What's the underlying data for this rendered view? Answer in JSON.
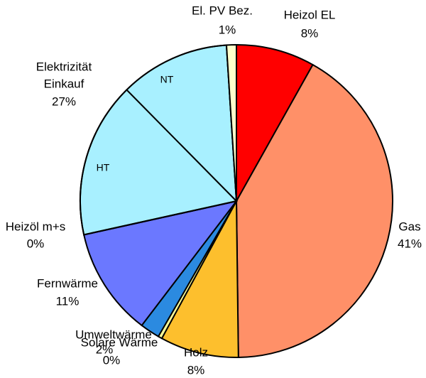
{
  "chart_data": {
    "type": "pie",
    "slices": [
      {
        "label": [
          "Heizol EL"
        ],
        "value": 8,
        "value_label": "8%",
        "color": "#ff0000"
      },
      {
        "label": [
          "Gas"
        ],
        "value": 41,
        "value_label": "41%",
        "color": "#ff9068"
      },
      {
        "label": [
          "Holz"
        ],
        "value": 8,
        "value_label": "8%",
        "color": "#fdbf2d"
      },
      {
        "label": [
          "Solare Wärme"
        ],
        "value": 0.4,
        "value_label": "0%",
        "color": "#ffff99"
      },
      {
        "label": [
          "Umweltwärme"
        ],
        "value": 2,
        "value_label": "2%",
        "color": "#2b8ae0"
      },
      {
        "label": [
          "Fernwärme"
        ],
        "value": 11,
        "value_label": "11%",
        "color": "#6b78ff"
      },
      {
        "label": [
          "Heizöl m+s"
        ],
        "value": 0,
        "value_label": "0%",
        "color": "#808080"
      },
      {
        "label": [
          "Elektrizität",
          "Einkauf"
        ],
        "value": 27,
        "value_label": "27%",
        "color": "#a8f0ff",
        "parts": [
          {
            "label": "HT",
            "value": 15.8
          },
          {
            "label": "NT",
            "value": 11.2
          }
        ]
      },
      {
        "label": [
          "El. PV Bez."
        ],
        "value": 1,
        "value_label": "1%",
        "color": "#ffffcc"
      }
    ]
  }
}
